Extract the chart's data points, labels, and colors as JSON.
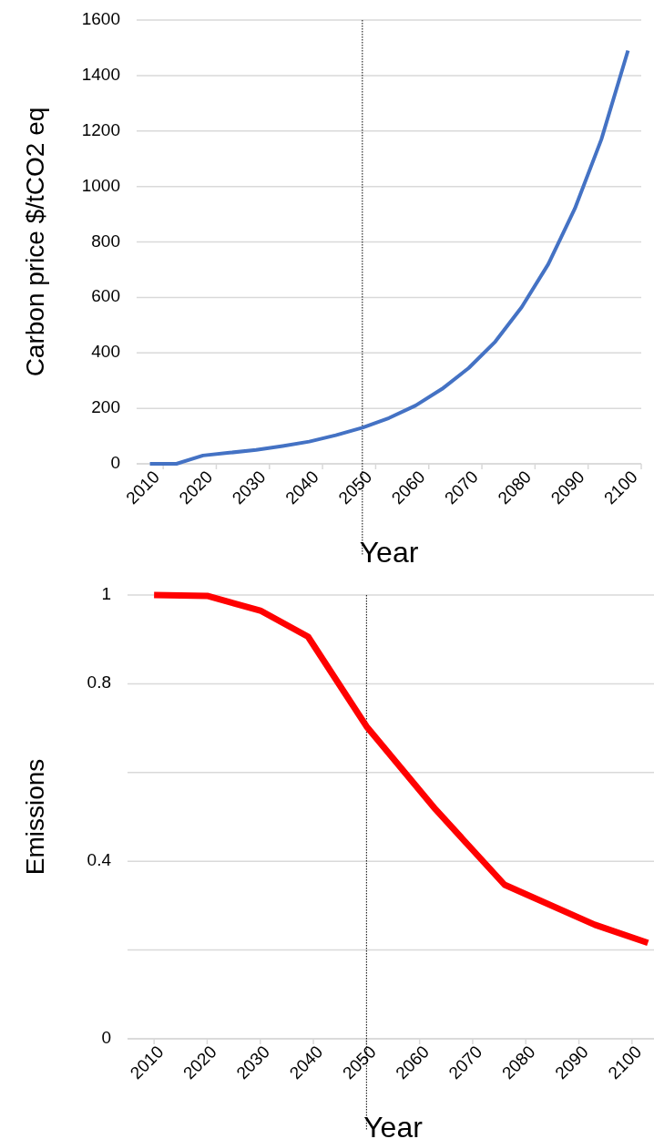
{
  "chart_data": [
    {
      "type": "line",
      "xlabel": "Year",
      "ylabel": "Carbon price $/tCO2 eq",
      "categories": [
        "2010",
        null,
        "2020",
        null,
        "2030",
        null,
        "2040",
        null,
        "2050",
        null,
        "2060",
        null,
        "2070",
        null,
        "2080",
        null,
        "2090",
        null,
        "2100"
      ],
      "series": [
        {
          "color": "#4472c4",
          "values": [
            0,
            0,
            30,
            40,
            50,
            64,
            80,
            103,
            130,
            165,
            210,
            270,
            345,
            440,
            565,
            720,
            920,
            1170,
            1490
          ]
        }
      ],
      "ylim": [
        0,
        1600
      ],
      "yticks": [
        0,
        200,
        400,
        600,
        800,
        1000,
        1200,
        1400,
        1600
      ],
      "grid": "y",
      "ref_lines": [
        {
          "axis": "x",
          "value": "2050",
          "color": "#000000",
          "line_style": "dotted"
        }
      ]
    },
    {
      "type": "line",
      "xlabel": "Year",
      "ylabel": "Emissions",
      "x": [
        2010,
        2020,
        2030,
        2039,
        2050,
        2063,
        2076,
        2093,
        2103
      ],
      "series": [
        {
          "color": "#ff0000",
          "values": [
            1.0,
            0.998,
            0.965,
            0.906,
            0.704,
            0.517,
            0.347,
            0.257,
            0.216
          ]
        }
      ],
      "xlim": [
        2005,
        2105
      ],
      "xticks": [
        2010,
        2020,
        2030,
        2040,
        2050,
        2060,
        2070,
        2080,
        2090,
        2100
      ],
      "ylim": [
        0,
        1
      ],
      "yticks": [
        0,
        {
          "value": 0.2,
          "label": null
        },
        0.4,
        {
          "value": 0.6,
          "label": null
        },
        0.8,
        1
      ],
      "grid": "y",
      "ref_lines": [
        {
          "axis": "x",
          "value": 2050,
          "color": "#000000",
          "line_style": "dotted"
        }
      ]
    }
  ]
}
